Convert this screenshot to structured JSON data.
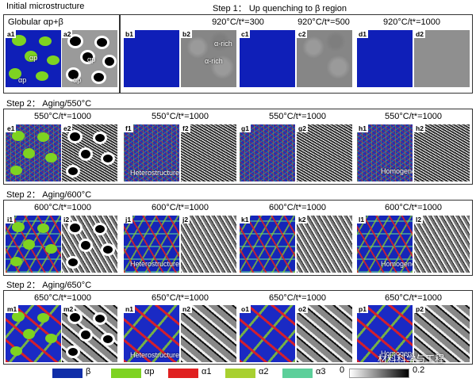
{
  "headers": {
    "initial": "Initial microstructure",
    "step1": "Step 1：  Up quenching to β region",
    "globular": "Globular αp+β",
    "step2_550": "Step 2：  Aging/550°C",
    "step2_600": "Step 2：  Aging/600°C",
    "step2_650": "Step 2：  Aging/650°C"
  },
  "row1": {
    "cond_b": "920°C/t*=300",
    "cond_c": "920°C/t*=500",
    "cond_d": "920°C/t*=1000",
    "labels": [
      "a1",
      "a2",
      "b1",
      "b2",
      "c1",
      "c2",
      "d1",
      "d2"
    ],
    "alpha_p": "αp",
    "a_rich": "α-rich"
  },
  "row2": {
    "conds": [
      "550°C/t*=1000",
      "550°C/t*=1000",
      "550°C/t*=1000",
      "550°C/t*=1000"
    ],
    "labels": [
      "e1",
      "e2",
      "f1",
      "f2",
      "g1",
      "g2",
      "h1",
      "h2"
    ],
    "hetero": "Heterostructure",
    "homog": "Homogeneous α"
  },
  "row3": {
    "conds": [
      "600°C/t*=1000",
      "600°C/t*=1000",
      "600°C/t*=1000",
      "600°C/t*=1000"
    ],
    "labels": [
      "i1",
      "i2",
      "j1",
      "j2",
      "k1",
      "k2",
      "l1",
      "l2"
    ],
    "hetero": "Heterostructure",
    "homog": "Homogeneous α"
  },
  "row4": {
    "conds": [
      "650°C/t*=1000",
      "650°C/t*=1000",
      "650°C/t*=1000",
      "650°C/t*=1000"
    ],
    "labels": [
      "m1",
      "m2",
      "n1",
      "n2",
      "o1",
      "o2",
      "p1",
      "p2"
    ],
    "hetero": "Heterostructure",
    "homog": "Homogeneous α"
  },
  "legend": {
    "items": [
      {
        "label": "β",
        "color": "#102ea8"
      },
      {
        "label": "αp",
        "color": "#7ed321"
      },
      {
        "label": "α1",
        "color": "#e02020"
      },
      {
        "label": "α2",
        "color": "#a8d030"
      },
      {
        "label": "α3",
        "color": "#5ccf9a"
      }
    ],
    "bar_min": "0",
    "bar_max": "0.2"
  },
  "watermark": "材料科学与工程"
}
